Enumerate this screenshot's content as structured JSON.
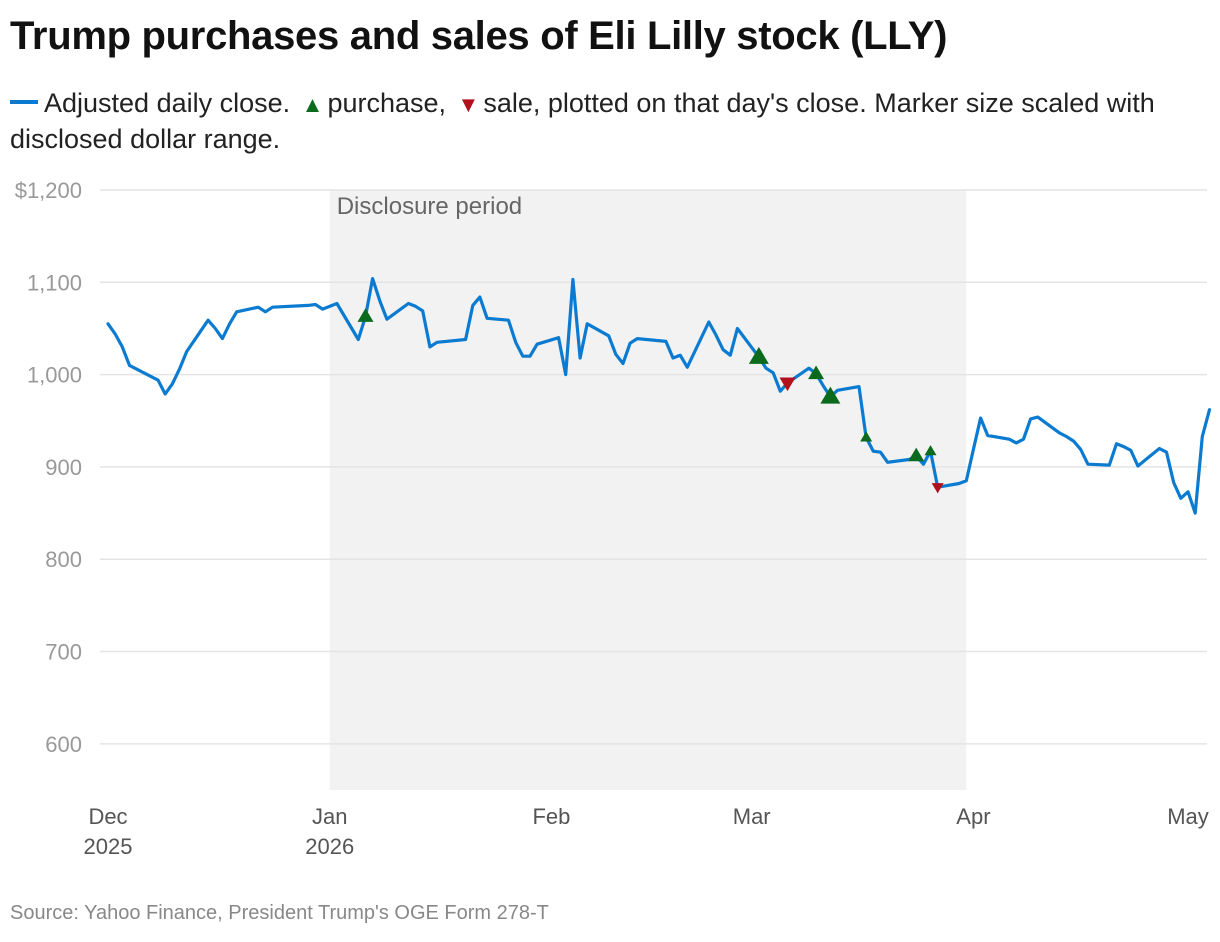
{
  "title": "Trump purchases and sales of Eli Lilly stock (LLY)",
  "legend": {
    "line_label": "Adjusted daily close.",
    "purchase_symbol": "▲",
    "purchase_label": "purchase,",
    "sale_symbol": "▼",
    "sale_label": "sale, plotted on that day's close. Marker size scaled with disclosed dollar range."
  },
  "source": "Source: Yahoo Finance, President Trump's OGE Form 278-T",
  "colors": {
    "line": "#0a7bd1",
    "purchase": "#0b6a1c",
    "sale": "#b3101d",
    "band": "#f2f2f2",
    "grid": "#e4e4e4",
    "tick": "#999999"
  },
  "chart_data": {
    "type": "line",
    "title": "Trump purchases and sales of Eli Lilly stock (LLY)",
    "xlabel": "",
    "ylabel": "",
    "ylim": [
      550,
      1200
    ],
    "xlim": [
      "2025-12-01",
      "2026-05-01"
    ],
    "grid": true,
    "y_ticks": [
      {
        "value": 1200,
        "label": "$1,200"
      },
      {
        "value": 1100,
        "label": "1,100"
      },
      {
        "value": 1000,
        "label": "1,000"
      },
      {
        "value": 900,
        "label": "900"
      },
      {
        "value": 800,
        "label": "800"
      },
      {
        "value": 700,
        "label": "700"
      },
      {
        "value": 600,
        "label": "600"
      }
    ],
    "x_ticks": [
      {
        "date": "2025-12-01",
        "label": "Dec",
        "sublabel": "2025"
      },
      {
        "date": "2026-01-01",
        "label": "Jan",
        "sublabel": "2026"
      },
      {
        "date": "2026-02-01",
        "label": "Feb",
        "sublabel": ""
      },
      {
        "date": "2026-03-01",
        "label": "Mar",
        "sublabel": ""
      },
      {
        "date": "2026-04-01",
        "label": "Apr",
        "sublabel": ""
      },
      {
        "date": "2026-05-01",
        "label": "May",
        "sublabel": ""
      }
    ],
    "shaded_region": {
      "label": "Disclosure period",
      "start": "2026-01-01",
      "end": "2026-03-31"
    },
    "series": [
      {
        "type": "line",
        "points": [
          [
            "2025-12-01",
            1055
          ],
          [
            "2025-12-02",
            1044
          ],
          [
            "2025-12-03",
            1030
          ],
          [
            "2025-12-04",
            1010
          ],
          [
            "2025-12-08",
            994
          ],
          [
            "2025-12-09",
            979
          ],
          [
            "2025-12-10",
            990
          ],
          [
            "2025-12-11",
            1006
          ],
          [
            "2025-12-12",
            1025
          ],
          [
            "2025-12-15",
            1059
          ],
          [
            "2025-12-16",
            1050
          ],
          [
            "2025-12-17",
            1039
          ],
          [
            "2025-12-18",
            1055
          ],
          [
            "2025-12-19",
            1068
          ],
          [
            "2025-12-22",
            1073
          ],
          [
            "2025-12-23",
            1068
          ],
          [
            "2025-12-24",
            1073
          ],
          [
            "2025-12-29",
            1075
          ],
          [
            "2025-12-30",
            1076
          ],
          [
            "2025-12-31",
            1071
          ],
          [
            "2026-01-02",
            1077
          ],
          [
            "2026-01-05",
            1038
          ],
          [
            "2026-01-06",
            1063
          ],
          [
            "2026-01-07",
            1104
          ],
          [
            "2026-01-08",
            1080
          ],
          [
            "2026-01-09",
            1060
          ],
          [
            "2026-01-12",
            1077
          ],
          [
            "2026-01-13",
            1074
          ],
          [
            "2026-01-14",
            1069
          ],
          [
            "2026-01-15",
            1030
          ],
          [
            "2026-01-16",
            1035
          ],
          [
            "2026-01-20",
            1038
          ],
          [
            "2026-01-21",
            1075
          ],
          [
            "2026-01-22",
            1084
          ],
          [
            "2026-01-23",
            1061
          ],
          [
            "2026-01-26",
            1059
          ],
          [
            "2026-01-27",
            1035
          ],
          [
            "2026-01-28",
            1020
          ],
          [
            "2026-01-29",
            1020
          ],
          [
            "2026-01-30",
            1033
          ],
          [
            "2026-02-02",
            1040
          ],
          [
            "2026-02-03",
            1000
          ],
          [
            "2026-02-04",
            1103
          ],
          [
            "2026-02-05",
            1018
          ],
          [
            "2026-02-06",
            1055
          ],
          [
            "2026-02-09",
            1042
          ],
          [
            "2026-02-10",
            1022
          ],
          [
            "2026-02-11",
            1012
          ],
          [
            "2026-02-12",
            1034
          ],
          [
            "2026-02-13",
            1039
          ],
          [
            "2026-02-17",
            1036
          ],
          [
            "2026-02-18",
            1018
          ],
          [
            "2026-02-19",
            1021
          ],
          [
            "2026-02-20",
            1008
          ],
          [
            "2026-02-23",
            1057
          ],
          [
            "2026-02-24",
            1043
          ],
          [
            "2026-02-25",
            1027
          ],
          [
            "2026-02-26",
            1021
          ],
          [
            "2026-02-27",
            1050
          ],
          [
            "2026-03-02",
            1019
          ],
          [
            "2026-03-03",
            1007
          ],
          [
            "2026-03-04",
            1002
          ],
          [
            "2026-03-05",
            982
          ],
          [
            "2026-03-06",
            991
          ],
          [
            "2026-03-09",
            1007
          ],
          [
            "2026-03-10",
            1001
          ],
          [
            "2026-03-11",
            988
          ],
          [
            "2026-03-12",
            976
          ],
          [
            "2026-03-13",
            983
          ],
          [
            "2026-03-16",
            987
          ],
          [
            "2026-03-17",
            932
          ],
          [
            "2026-03-18",
            917
          ],
          [
            "2026-03-19",
            916
          ],
          [
            "2026-03-20",
            905
          ],
          [
            "2026-03-23",
            908
          ],
          [
            "2026-03-24",
            912
          ],
          [
            "2026-03-25",
            903
          ],
          [
            "2026-03-26",
            917
          ],
          [
            "2026-03-27",
            878
          ],
          [
            "2026-03-30",
            882
          ],
          [
            "2026-03-31",
            885
          ],
          [
            "2026-04-01",
            919
          ],
          [
            "2026-04-02",
            953
          ],
          [
            "2026-04-03",
            934
          ],
          [
            "2026-04-06",
            930
          ],
          [
            "2026-04-07",
            926
          ],
          [
            "2026-04-08",
            930
          ],
          [
            "2026-04-09",
            952
          ],
          [
            "2026-04-10",
            954
          ],
          [
            "2026-04-13",
            937
          ],
          [
            "2026-04-14",
            933
          ],
          [
            "2026-04-15",
            928
          ],
          [
            "2026-04-16",
            919
          ],
          [
            "2026-04-17",
            903
          ],
          [
            "2026-04-20",
            902
          ],
          [
            "2026-04-21",
            925
          ],
          [
            "2026-04-22",
            922
          ],
          [
            "2026-04-23",
            918
          ],
          [
            "2026-04-24",
            901
          ],
          [
            "2026-04-27",
            920
          ],
          [
            "2026-04-28",
            916
          ],
          [
            "2026-04-29",
            883
          ],
          [
            "2026-04-30",
            866
          ],
          [
            "2026-05-01",
            873
          ],
          [
            "2026-05-02",
            850
          ],
          [
            "2026-05-03",
            933
          ],
          [
            "2026-05-04",
            962
          ]
        ]
      },
      {
        "type": "scatter",
        "markers": [
          {
            "date": "2026-01-06",
            "value": 1063,
            "kind": "purchase",
            "size": "medium"
          },
          {
            "date": "2026-03-02",
            "value": 1019,
            "kind": "purchase",
            "size": "large"
          },
          {
            "date": "2026-03-06",
            "value": 991,
            "kind": "sale",
            "size": "medium"
          },
          {
            "date": "2026-03-10",
            "value": 1001,
            "kind": "purchase",
            "size": "medium"
          },
          {
            "date": "2026-03-12",
            "value": 976,
            "kind": "purchase",
            "size": "large"
          },
          {
            "date": "2026-03-17",
            "value": 932,
            "kind": "purchase",
            "size": "small"
          },
          {
            "date": "2026-03-24",
            "value": 912,
            "kind": "purchase",
            "size": "medium"
          },
          {
            "date": "2026-03-26",
            "value": 917,
            "kind": "purchase",
            "size": "small"
          },
          {
            "date": "2026-03-27",
            "value": 878,
            "kind": "sale",
            "size": "small"
          }
        ]
      }
    ]
  }
}
